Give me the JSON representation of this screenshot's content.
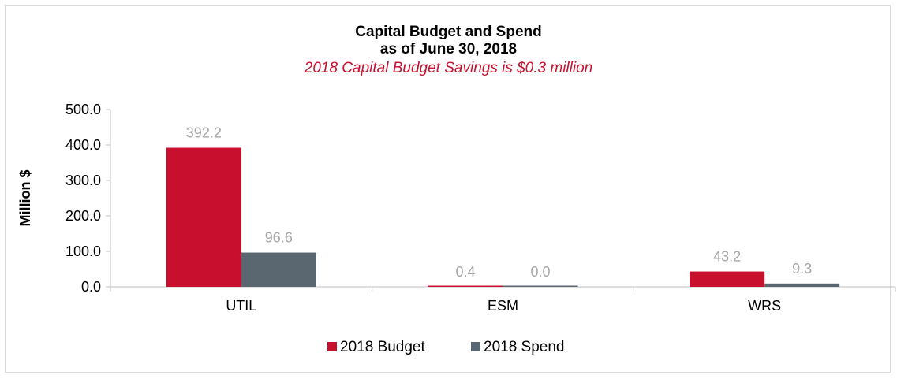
{
  "chart_data": {
    "type": "bar",
    "title_line1": "Capital Budget and Spend",
    "title_line2": "as of June 30, 2018",
    "subtitle": "2018 Capital Budget Savings is $0.3 million",
    "ylabel": "Million $",
    "xlabel": "",
    "categories": [
      "UTIL",
      "ESM",
      "WRS"
    ],
    "series": [
      {
        "name": "2018 Budget",
        "color": "#c8102e",
        "values": [
          392.2,
          0.4,
          43.2
        ],
        "labels": [
          "392.2",
          "0.4",
          "43.2"
        ]
      },
      {
        "name": "2018 Spend",
        "color": "#5b6770",
        "values": [
          96.6,
          0.0,
          9.3
        ],
        "labels": [
          "96.6",
          "0.0",
          "9.3"
        ]
      }
    ],
    "ylim": [
      0,
      500
    ],
    "yticks": [
      "0.0",
      "100.0",
      "200.0",
      "300.0",
      "400.0",
      "500.0"
    ],
    "ytick_values": [
      0,
      100,
      200,
      300,
      400,
      500
    ],
    "grid": false,
    "legend_position": "bottom",
    "data_label_color": "#a6a6a6"
  }
}
